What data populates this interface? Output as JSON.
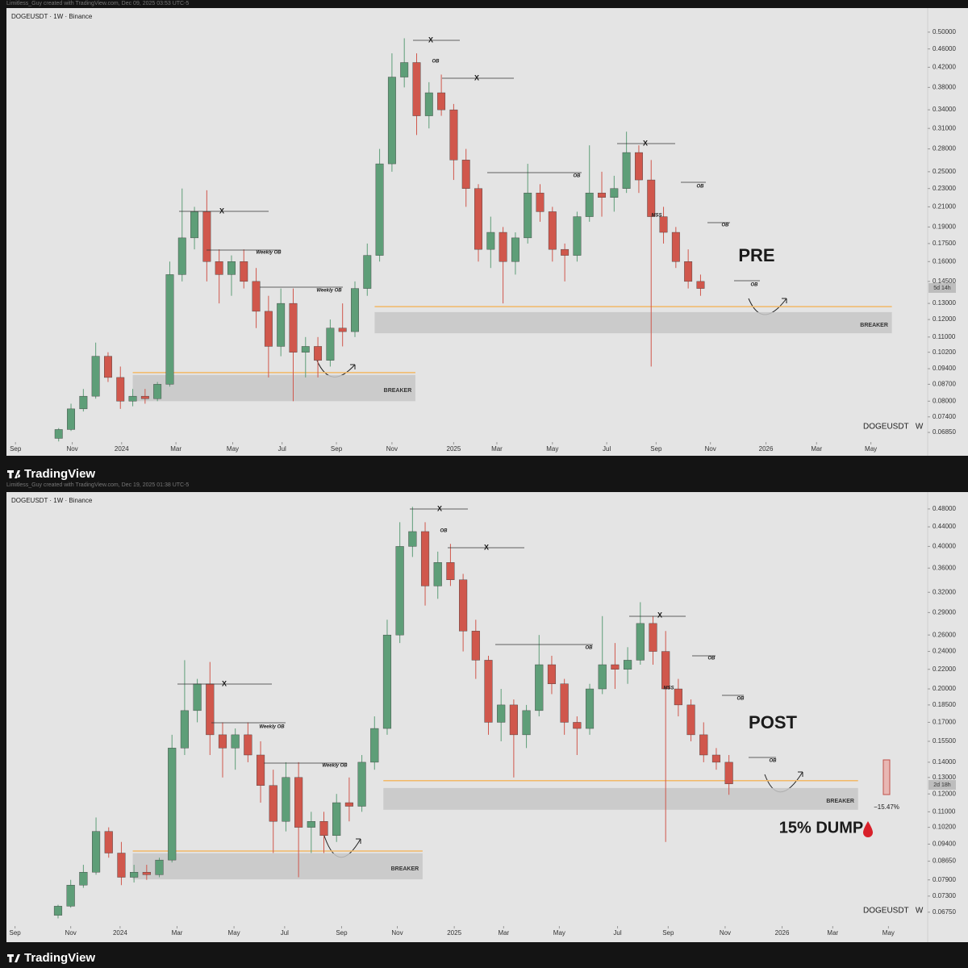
{
  "captions": [
    "Limitless_Guy created with TradingView.com, Dec 09, 2025 03:53 UTC-5",
    "Limitless_Guy created with TradingView.com, Dec 19, 2025 01:38 UTC-5"
  ],
  "brand": [
    "TradingView",
    "TradingView"
  ],
  "chart_data": [
    {
      "type": "candlestick",
      "symbol": "DOGEUSDT · 1W · Binance",
      "corner_label": "DOGEUSDT   W",
      "countdown": "5d 14h",
      "log_scale": true,
      "grid": false,
      "up_color": "#5e9e78",
      "down_color": "#d0574c",
      "open": [
        0.0665,
        0.0695,
        0.077,
        0.082,
        0.1,
        0.09,
        0.08,
        0.082,
        0.081,
        0.087,
        0.15,
        0.18,
        0.205,
        0.16,
        0.15,
        0.16,
        0.145,
        0.125,
        0.105,
        0.13,
        0.102,
        0.105,
        0.098,
        0.115,
        0.113,
        0.14,
        0.165,
        0.26,
        0.4,
        0.43,
        0.33,
        0.37,
        0.34,
        0.265,
        0.23,
        0.17,
        0.185,
        0.16,
        0.18,
        0.225,
        0.205,
        0.17,
        0.165,
        0.2,
        0.225,
        0.22,
        0.23,
        0.275,
        0.24,
        0.2,
        0.185,
        0.16,
        0.145
      ],
      "high": [
        0.07,
        0.079,
        0.085,
        0.107,
        0.102,
        0.095,
        0.085,
        0.085,
        0.088,
        0.16,
        0.23,
        0.21,
        0.228,
        0.17,
        0.165,
        0.17,
        0.155,
        0.135,
        0.14,
        0.14,
        0.11,
        0.11,
        0.12,
        0.13,
        0.145,
        0.175,
        0.28,
        0.45,
        0.485,
        0.45,
        0.39,
        0.405,
        0.35,
        0.28,
        0.235,
        0.2,
        0.19,
        0.185,
        0.26,
        0.235,
        0.21,
        0.175,
        0.205,
        0.285,
        0.25,
        0.245,
        0.305,
        0.285,
        0.265,
        0.21,
        0.19,
        0.17,
        0.15
      ],
      "low": [
        0.0655,
        0.069,
        0.076,
        0.081,
        0.088,
        0.077,
        0.078,
        0.079,
        0.08,
        0.086,
        0.145,
        0.17,
        0.145,
        0.13,
        0.135,
        0.14,
        0.115,
        0.09,
        0.1,
        0.08,
        0.09,
        0.09,
        0.095,
        0.105,
        0.11,
        0.135,
        0.16,
        0.25,
        0.38,
        0.3,
        0.31,
        0.33,
        0.24,
        0.21,
        0.16,
        0.155,
        0.13,
        0.15,
        0.175,
        0.195,
        0.16,
        0.145,
        0.16,
        0.195,
        0.2,
        0.205,
        0.225,
        0.225,
        0.095,
        0.175,
        0.155,
        0.14,
        0.135
      ],
      "close": [
        0.0695,
        0.077,
        0.082,
        0.1,
        0.09,
        0.08,
        0.082,
        0.081,
        0.087,
        0.15,
        0.18,
        0.205,
        0.16,
        0.15,
        0.16,
        0.145,
        0.125,
        0.105,
        0.13,
        0.102,
        0.105,
        0.098,
        0.115,
        0.113,
        0.14,
        0.165,
        0.26,
        0.4,
        0.43,
        0.33,
        0.37,
        0.34,
        0.265,
        0.23,
        0.17,
        0.185,
        0.16,
        0.18,
        0.225,
        0.205,
        0.17,
        0.165,
        0.2,
        0.225,
        0.22,
        0.23,
        0.275,
        0.24,
        0.2,
        0.185,
        0.16,
        0.145,
        0.14
      ],
      "xlim": [
        -4.1,
        70.4
      ],
      "xticks": [
        {
          "value": -3.5,
          "label": "Sep"
        },
        {
          "value": 1.1,
          "label": "Nov"
        },
        {
          "value": 5.1,
          "label": "2024"
        },
        {
          "value": 9.5,
          "label": "Mar"
        },
        {
          "value": 14.1,
          "label": "May"
        },
        {
          "value": 18.1,
          "label": "Jul"
        },
        {
          "value": 22.5,
          "label": "Sep"
        },
        {
          "value": 27.0,
          "label": "Nov"
        },
        {
          "value": 32.0,
          "label": "2025"
        },
        {
          "value": 35.5,
          "label": "Mar"
        },
        {
          "value": 40.0,
          "label": "May"
        },
        {
          "value": 44.4,
          "label": "Jul"
        },
        {
          "value": 48.4,
          "label": "Sep"
        },
        {
          "value": 52.8,
          "label": "Nov"
        },
        {
          "value": 57.3,
          "label": "2026"
        },
        {
          "value": 61.4,
          "label": "Mar"
        },
        {
          "value": 65.8,
          "label": "May"
        }
      ],
      "ylim": [
        0.0653,
        0.559
      ],
      "yticks": [
        {
          "value": 0.5,
          "label": "0.50000"
        },
        {
          "value": 0.46,
          "label": "0.46000"
        },
        {
          "value": 0.42,
          "label": "0.42000"
        },
        {
          "value": 0.38,
          "label": "0.38000"
        },
        {
          "value": 0.34,
          "label": "0.34000"
        },
        {
          "value": 0.31,
          "label": "0.31000"
        },
        {
          "value": 0.28,
          "label": "0.28000"
        },
        {
          "value": 0.25,
          "label": "0.25000"
        },
        {
          "value": 0.23,
          "label": "0.23000"
        },
        {
          "value": 0.21,
          "label": "0.21000"
        },
        {
          "value": 0.19,
          "label": "0.19000"
        },
        {
          "value": 0.175,
          "label": "0.17500"
        },
        {
          "value": 0.16,
          "label": "0.16000"
        },
        {
          "value": 0.145,
          "label": "0.14500"
        },
        {
          "value": 0.13,
          "label": "0.13000"
        },
        {
          "value": 0.12,
          "label": "0.12000"
        },
        {
          "value": 0.11,
          "label": "0.11000"
        },
        {
          "value": 0.102,
          "label": "0.10200"
        },
        {
          "value": 0.094,
          "label": "0.09400"
        },
        {
          "value": 0.087,
          "label": "0.08700"
        },
        {
          "value": 0.08,
          "label": "0.08000"
        },
        {
          "value": 0.074,
          "label": "0.07400"
        },
        {
          "value": 0.0685,
          "label": "0.06850"
        }
      ],
      "zones": [
        {
          "label": "BREAKER",
          "x0": 6.0,
          "x1": 28.9,
          "low": 0.08,
          "high": 0.0911,
          "level": 0.0922
        },
        {
          "label": "BREAKER",
          "x0": 25.6,
          "x1": 67.5,
          "low": 0.1121,
          "high": 0.1245,
          "level": 0.1279
        }
      ],
      "annotations": [
        "X",
        "OB",
        "X",
        "X",
        "Weekly OB",
        "Weekly OB",
        "OB",
        "X",
        "OB",
        "OB",
        "MSS",
        "OB",
        "PRE"
      ]
    },
    {
      "type": "candlestick",
      "symbol": "DOGEUSDT · 1W · Binance",
      "corner_label": "DOGEUSDT   W",
      "countdown": "2d 18h",
      "log_scale": true,
      "grid": false,
      "up_color": "#5e9e78",
      "down_color": "#d0574c",
      "open": [
        0.0665,
        0.0695,
        0.077,
        0.082,
        0.1,
        0.09,
        0.08,
        0.082,
        0.081,
        0.087,
        0.15,
        0.18,
        0.205,
        0.16,
        0.15,
        0.16,
        0.145,
        0.125,
        0.105,
        0.13,
        0.102,
        0.105,
        0.098,
        0.115,
        0.113,
        0.14,
        0.165,
        0.26,
        0.4,
        0.43,
        0.33,
        0.37,
        0.34,
        0.265,
        0.23,
        0.17,
        0.185,
        0.16,
        0.18,
        0.225,
        0.205,
        0.17,
        0.165,
        0.2,
        0.225,
        0.22,
        0.23,
        0.275,
        0.24,
        0.2,
        0.185,
        0.16,
        0.145,
        0.14
      ],
      "high": [
        0.07,
        0.079,
        0.085,
        0.107,
        0.102,
        0.095,
        0.085,
        0.085,
        0.088,
        0.16,
        0.23,
        0.21,
        0.228,
        0.17,
        0.165,
        0.17,
        0.155,
        0.135,
        0.14,
        0.14,
        0.11,
        0.11,
        0.12,
        0.13,
        0.145,
        0.175,
        0.28,
        0.45,
        0.485,
        0.45,
        0.39,
        0.405,
        0.35,
        0.28,
        0.235,
        0.2,
        0.19,
        0.185,
        0.26,
        0.235,
        0.21,
        0.175,
        0.205,
        0.285,
        0.25,
        0.245,
        0.305,
        0.285,
        0.265,
        0.21,
        0.19,
        0.17,
        0.15,
        0.145
      ],
      "low": [
        0.0655,
        0.069,
        0.076,
        0.081,
        0.088,
        0.077,
        0.078,
        0.079,
        0.08,
        0.086,
        0.145,
        0.17,
        0.145,
        0.13,
        0.135,
        0.14,
        0.115,
        0.09,
        0.1,
        0.08,
        0.09,
        0.09,
        0.095,
        0.105,
        0.11,
        0.135,
        0.16,
        0.25,
        0.38,
        0.3,
        0.31,
        0.33,
        0.24,
        0.21,
        0.16,
        0.155,
        0.13,
        0.15,
        0.175,
        0.195,
        0.16,
        0.145,
        0.16,
        0.195,
        0.2,
        0.205,
        0.225,
        0.225,
        0.095,
        0.175,
        0.155,
        0.14,
        0.135,
        0.1195
      ],
      "close": [
        0.0695,
        0.077,
        0.082,
        0.1,
        0.09,
        0.08,
        0.082,
        0.081,
        0.087,
        0.15,
        0.18,
        0.205,
        0.16,
        0.15,
        0.16,
        0.145,
        0.125,
        0.105,
        0.13,
        0.102,
        0.105,
        0.098,
        0.115,
        0.113,
        0.14,
        0.165,
        0.26,
        0.4,
        0.43,
        0.33,
        0.37,
        0.34,
        0.265,
        0.23,
        0.17,
        0.185,
        0.16,
        0.18,
        0.225,
        0.205,
        0.17,
        0.165,
        0.2,
        0.225,
        0.22,
        0.23,
        0.275,
        0.24,
        0.2,
        0.185,
        0.16,
        0.145,
        0.14,
        0.126
      ],
      "xlim": [
        -3.95,
        68.7
      ],
      "xticks": [
        {
          "value": -3.4,
          "label": "Sep"
        },
        {
          "value": 1.0,
          "label": "Nov"
        },
        {
          "value": 4.9,
          "label": "2024"
        },
        {
          "value": 9.4,
          "label": "Mar"
        },
        {
          "value": 13.9,
          "label": "May"
        },
        {
          "value": 17.9,
          "label": "Jul"
        },
        {
          "value": 22.4,
          "label": "Sep"
        },
        {
          "value": 26.8,
          "label": "Nov"
        },
        {
          "value": 31.3,
          "label": "2025"
        },
        {
          "value": 35.2,
          "label": "Mar"
        },
        {
          "value": 39.6,
          "label": "May"
        },
        {
          "value": 44.2,
          "label": "Jul"
        },
        {
          "value": 48.2,
          "label": "Sep"
        },
        {
          "value": 52.7,
          "label": "Nov"
        },
        {
          "value": 57.2,
          "label": "2026"
        },
        {
          "value": 61.2,
          "label": "Mar"
        },
        {
          "value": 65.6,
          "label": "May"
        }
      ],
      "ylim": [
        0.0631,
        0.517
      ],
      "yticks": [
        {
          "value": 0.48,
          "label": "0.48000"
        },
        {
          "value": 0.44,
          "label": "0.44000"
        },
        {
          "value": 0.4,
          "label": "0.40000"
        },
        {
          "value": 0.36,
          "label": "0.36000"
        },
        {
          "value": 0.32,
          "label": "0.32000"
        },
        {
          "value": 0.29,
          "label": "0.29000"
        },
        {
          "value": 0.26,
          "label": "0.26000"
        },
        {
          "value": 0.24,
          "label": "0.24000"
        },
        {
          "value": 0.22,
          "label": "0.22000"
        },
        {
          "value": 0.2,
          "label": "0.20000"
        },
        {
          "value": 0.185,
          "label": "0.18500"
        },
        {
          "value": 0.17,
          "label": "0.17000"
        },
        {
          "value": 0.155,
          "label": "0.15500"
        },
        {
          "value": 0.14,
          "label": "0.14000"
        },
        {
          "value": 0.13,
          "label": "0.13000"
        },
        {
          "value": 0.12,
          "label": "0.12000"
        },
        {
          "value": 0.11,
          "label": "0.11000"
        },
        {
          "value": 0.102,
          "label": "0.10200"
        },
        {
          "value": 0.094,
          "label": "0.09400"
        },
        {
          "value": 0.0865,
          "label": "0.08650"
        },
        {
          "value": 0.079,
          "label": "0.07900"
        },
        {
          "value": 0.073,
          "label": "0.07300"
        },
        {
          "value": 0.0675,
          "label": "0.06750"
        }
      ],
      "zones": [
        {
          "label": "BREAKER",
          "x0": 5.9,
          "x1": 28.8,
          "low": 0.0792,
          "high": 0.0899,
          "level": 0.0909
        },
        {
          "label": "BREAKER",
          "x0": 25.7,
          "x1": 63.2,
          "low": 0.1111,
          "high": 0.1235,
          "level": 0.128
        }
      ],
      "annotations": [
        "X",
        "OB",
        "X",
        "X",
        "Weekly OB",
        "Weekly OB",
        "OB",
        "X",
        "OB",
        "OB",
        "MSS",
        "OB",
        "POST",
        "15% DUMP",
        "−15.47%"
      ]
    }
  ]
}
